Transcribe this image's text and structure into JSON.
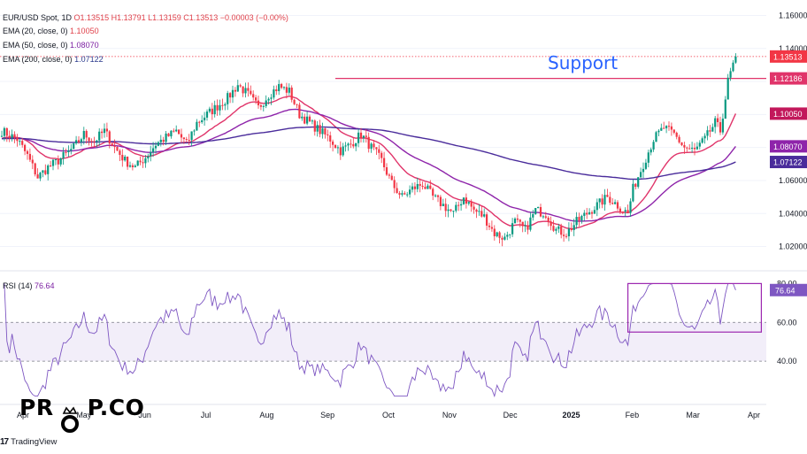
{
  "chart_data": {
    "type": "candlestick",
    "symbol_line": {
      "symbol": "EUR/USD Spot, 1D",
      "open": "O1.13515",
      "high": "H1.13791",
      "low": "L1.13159",
      "close": "C1.13513",
      "change": "−0.00003 (−0.00%)"
    },
    "indicators": [
      {
        "label": "EMA (20, close, 0)",
        "value": "1.10050",
        "color": "#e0346a",
        "last": 1.1005
      },
      {
        "label": "EMA (50, close, 0)",
        "value": "1.08070",
        "color": "#8e24aa",
        "last": 1.0807
      },
      {
        "label": "EMA (200, close, 0)",
        "value": "1.07122",
        "color": "#4a2c9b",
        "last": 1.07122
      }
    ],
    "price_axis": {
      "ylim": [
        1.0085,
        1.164
      ],
      "ticks": [
        "1.16000",
        "1.14000",
        "1.12000",
        "1.10000",
        "1.08000",
        "1.06000",
        "1.04000",
        "1.02000"
      ],
      "tick_values": [
        1.16,
        1.14,
        1.12,
        1.1,
        1.08,
        1.06,
        1.04,
        1.02
      ]
    },
    "price_labels": [
      {
        "text": "1.13513",
        "value": 1.13513,
        "color": "#f23645"
      },
      {
        "text": "1.12186",
        "value": 1.12186,
        "color": "#e0346a"
      },
      {
        "text": "1.10050",
        "value": 1.1005,
        "color": "#c2185b"
      },
      {
        "text": "1.08070",
        "value": 1.0807,
        "color": "#8e24aa"
      },
      {
        "text": "1.07122",
        "value": 1.07122,
        "color": "#4a2c9b"
      }
    ],
    "support": {
      "label": "Support",
      "level": 1.12186,
      "color": "#e0346a",
      "label_color": "#2962ff"
    },
    "last_price": 1.13513,
    "x_axis": [
      "Apr",
      "May",
      "Jun",
      "Jul",
      "Aug",
      "Sep",
      "Oct",
      "Nov",
      "Dec",
      "2025",
      "Feb",
      "Mar",
      "Apr"
    ],
    "close_path": {
      "note_units": "daily closes, anchors interpolated",
      "anchors": [
        [
          0,
          1.09
        ],
        [
          6,
          1.085
        ],
        [
          10,
          1.075
        ],
        [
          14,
          1.062
        ],
        [
          18,
          1.068
        ],
        [
          22,
          1.072
        ],
        [
          28,
          1.08
        ],
        [
          32,
          1.088
        ],
        [
          36,
          1.084
        ],
        [
          40,
          1.09
        ],
        [
          44,
          1.08
        ],
        [
          48,
          1.072
        ],
        [
          52,
          1.068
        ],
        [
          56,
          1.074
        ],
        [
          60,
          1.082
        ],
        [
          64,
          1.086
        ],
        [
          68,
          1.09
        ],
        [
          72,
          1.082
        ],
        [
          76,
          1.095
        ],
        [
          80,
          1.1
        ],
        [
          84,
          1.105
        ],
        [
          88,
          1.11
        ],
        [
          92,
          1.118
        ],
        [
          96,
          1.112
        ],
        [
          100,
          1.104
        ],
        [
          104,
          1.112
        ],
        [
          108,
          1.117
        ],
        [
          112,
          1.114
        ],
        [
          116,
          1.1
        ],
        [
          120,
          1.095
        ],
        [
          124,
          1.09
        ],
        [
          128,
          1.085
        ],
        [
          132,
          1.078
        ],
        [
          136,
          1.082
        ],
        [
          140,
          1.088
        ],
        [
          144,
          1.08
        ],
        [
          148,
          1.072
        ],
        [
          152,
          1.058
        ],
        [
          156,
          1.05
        ],
        [
          160,
          1.055
        ],
        [
          164,
          1.058
        ],
        [
          168,
          1.05
        ],
        [
          172,
          1.045
        ],
        [
          176,
          1.04
        ],
        [
          180,
          1.05
        ],
        [
          184,
          1.042
        ],
        [
          188,
          1.038
        ],
        [
          192,
          1.028
        ],
        [
          196,
          1.025
        ],
        [
          200,
          1.035
        ],
        [
          204,
          1.03
        ],
        [
          208,
          1.042
        ],
        [
          212,
          1.04
        ],
        [
          216,
          1.03
        ],
        [
          220,
          1.028
        ],
        [
          224,
          1.035
        ],
        [
          228,
          1.04
        ],
        [
          232,
          1.045
        ],
        [
          236,
          1.05
        ],
        [
          240,
          1.045
        ],
        [
          244,
          1.04
        ],
        [
          246,
          1.055
        ],
        [
          250,
          1.07
        ],
        [
          254,
          1.085
        ],
        [
          258,
          1.092
        ],
        [
          262,
          1.088
        ],
        [
          266,
          1.08
        ],
        [
          270,
          1.078
        ],
        [
          274,
          1.085
        ],
        [
          278,
          1.095
        ],
        [
          280,
          1.09
        ],
        [
          283,
          1.12
        ],
        [
          286,
          1.135
        ]
      ]
    },
    "rsi": {
      "label": "RSI (14)",
      "value_text": "76.64",
      "last": 76.64,
      "ylim": [
        20,
        82
      ],
      "band": [
        40,
        60
      ],
      "ticks": [
        "80.00",
        "60.00",
        "40.00"
      ],
      "tick_values": [
        80,
        60,
        40
      ],
      "highlight_box": {
        "from_bar": 244,
        "to_bar": 296,
        "low": 55,
        "high": 80,
        "color": "#9c27b0"
      }
    }
  },
  "branding": {
    "watermark": "PR   P.CO",
    "footer": "TradingView",
    "footer_logo": "17"
  }
}
